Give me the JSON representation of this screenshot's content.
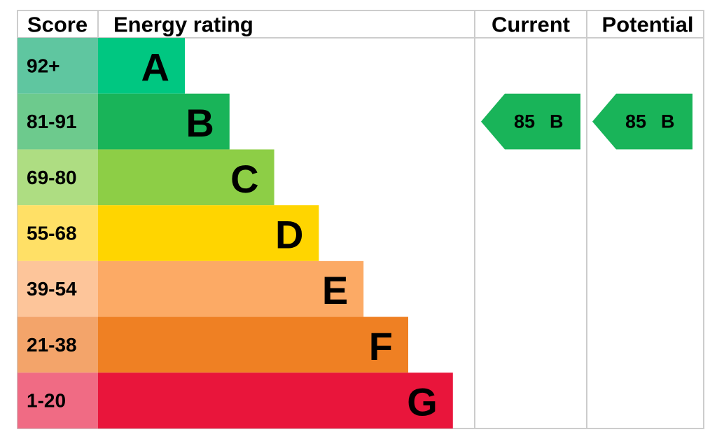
{
  "header": {
    "score": "Score",
    "energy_rating": "Energy rating",
    "current": "Current",
    "potential": "Potential"
  },
  "bands": [
    {
      "score": "92+",
      "letter": "A",
      "color": "#00c781",
      "score_color": "#5fc6a0"
    },
    {
      "score": "81-91",
      "letter": "B",
      "color": "#19b459",
      "score_color": "#6dca8d"
    },
    {
      "score": "69-80",
      "letter": "C",
      "color": "#8dce46",
      "score_color": "#aedd82"
    },
    {
      "score": "55-68",
      "letter": "D",
      "color": "#ffd500",
      "score_color": "#ffe066"
    },
    {
      "score": "39-54",
      "letter": "E",
      "color": "#fcaa65",
      "score_color": "#fdc59a"
    },
    {
      "score": "21-38",
      "letter": "F",
      "color": "#ef8023",
      "score_color": "#f3a46a"
    },
    {
      "score": "1-20",
      "letter": "G",
      "color": "#e9153b",
      "score_color": "#f06b84"
    }
  ],
  "current": {
    "score": "85",
    "letter": "B"
  },
  "potential": {
    "score": "85",
    "letter": "B"
  }
}
